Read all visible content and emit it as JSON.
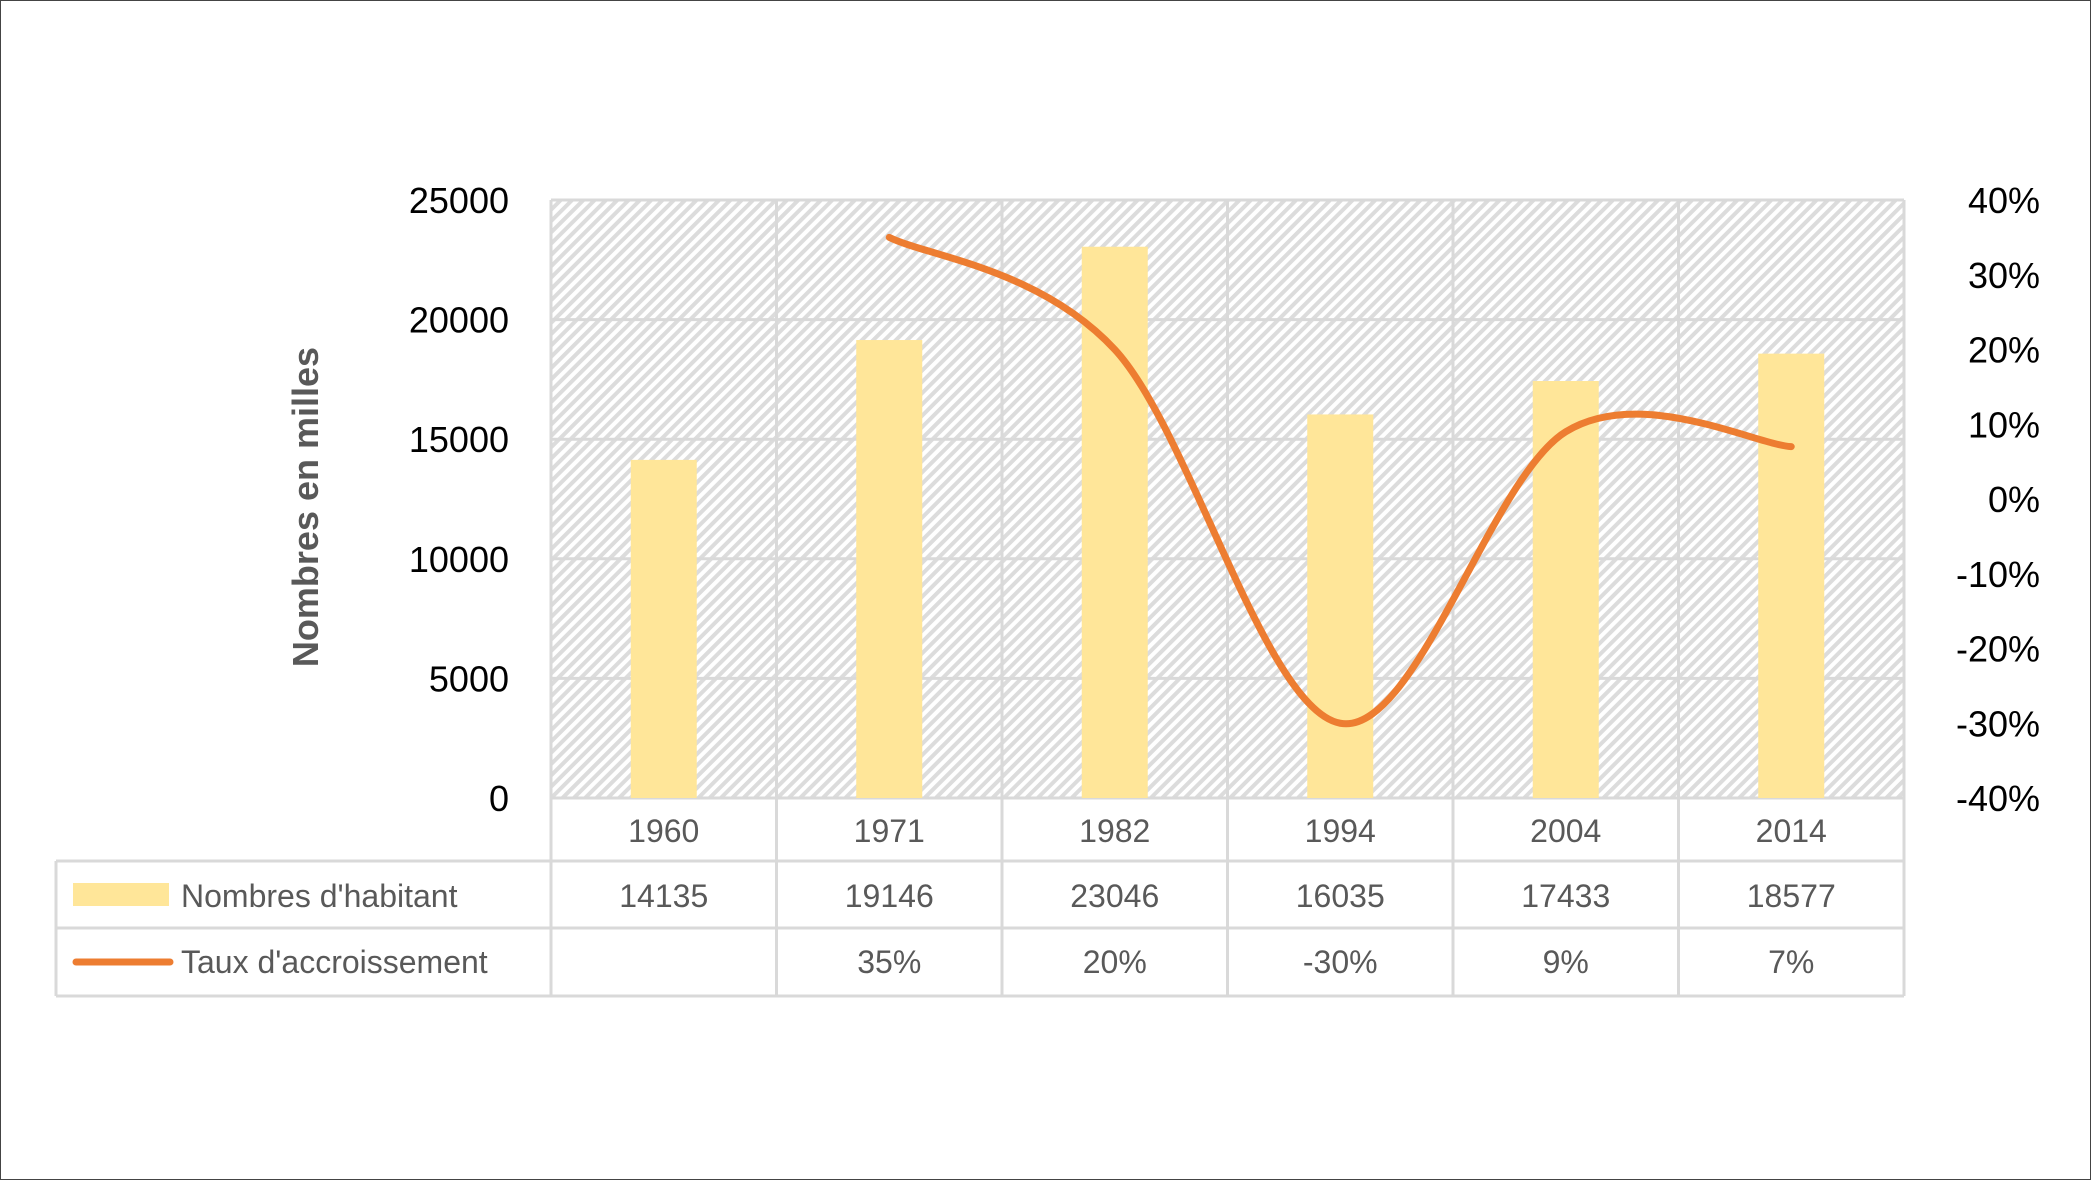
{
  "chart_data": {
    "type": "bar",
    "title": "",
    "categories": [
      "1960",
      "1971",
      "1982",
      "1994",
      "2004",
      "2014"
    ],
    "ylabel": "Nombres en milles",
    "ylim": [
      0,
      25000
    ],
    "yticks": [
      "0",
      "5000",
      "10000",
      "15000",
      "20000",
      "25000"
    ],
    "y2lim": [
      -0.4,
      0.4
    ],
    "y2ticks": [
      "-40%",
      "-30%",
      "-20%",
      "-10%",
      "0%",
      "10%",
      "20%",
      "30%",
      "40%"
    ],
    "grid": true,
    "legend": "data-table-below",
    "series": [
      {
        "name": "Nombres d'habitant",
        "type": "bar",
        "axis": "left",
        "color": "#FFE699",
        "values": [
          14135,
          19146,
          23046,
          16035,
          17433,
          18577
        ],
        "labels": [
          "14135",
          "19146",
          "23046",
          "16035",
          "17433",
          "18577"
        ]
      },
      {
        "name": "Taux d'accroissement",
        "type": "line",
        "smooth": true,
        "axis": "right",
        "color": "#ED7D31",
        "values": [
          null,
          0.35,
          0.2,
          -0.3,
          0.09,
          0.07
        ],
        "labels": [
          "",
          "35%",
          "20%",
          "-30%",
          "9%",
          "7%"
        ]
      }
    ]
  }
}
